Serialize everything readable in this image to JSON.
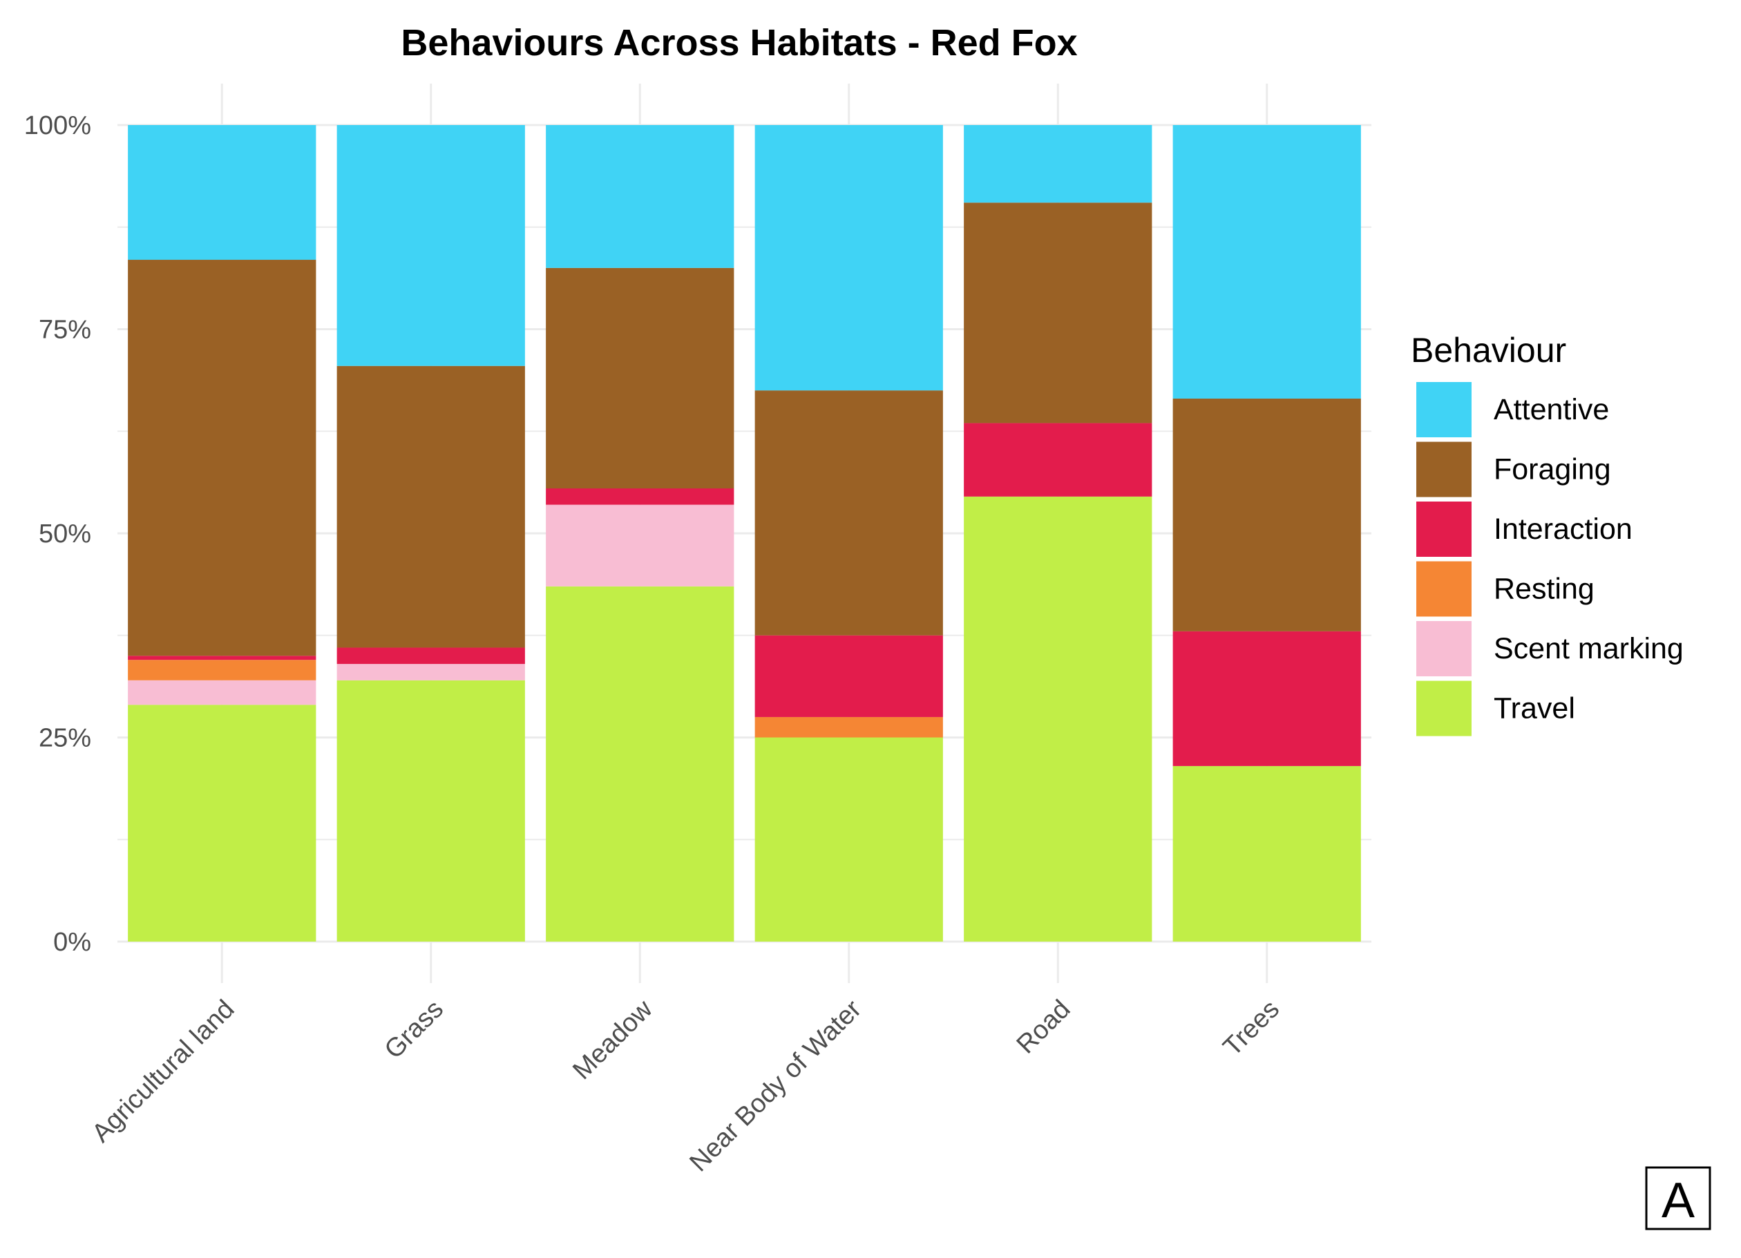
{
  "chart_data": {
    "type": "bar",
    "stacked": true,
    "normalized": true,
    "title": "Behaviours Across Habitats - Red Fox",
    "xlabel": "",
    "ylabel": "",
    "ylim": [
      0,
      1
    ],
    "y_ticks": [
      {
        "value": 0,
        "label": "0%"
      },
      {
        "value": 0.25,
        "label": "25%"
      },
      {
        "value": 0.5,
        "label": "50%"
      },
      {
        "value": 0.75,
        "label": "75%"
      },
      {
        "value": 1,
        "label": "100%"
      }
    ],
    "categories": [
      "Agricultural land",
      "Grass",
      "Meadow",
      "Near Body of Water",
      "Road",
      "Trees"
    ],
    "legend_title": "Behaviour",
    "legend_position": "right",
    "series": [
      {
        "name": "Travel",
        "color": "#c1ee47",
        "values": [
          0.29,
          0.32,
          0.435,
          0.25,
          0.545,
          0.215
        ]
      },
      {
        "name": "Scent marking",
        "color": "#f8bdd3",
        "values": [
          0.03,
          0.02,
          0.1,
          0.0,
          0.0,
          0.0
        ]
      },
      {
        "name": "Resting",
        "color": "#f58634",
        "values": [
          0.025,
          0.0,
          0.0,
          0.025,
          0.0,
          0.0
        ]
      },
      {
        "name": "Interaction",
        "color": "#e31c4c",
        "values": [
          0.005,
          0.02,
          0.02,
          0.1,
          0.09,
          0.165
        ]
      },
      {
        "name": "Foraging",
        "color": "#9a6125",
        "values": [
          0.485,
          0.345,
          0.27,
          0.3,
          0.27,
          0.285
        ]
      },
      {
        "name": "Attentive",
        "color": "#40d3f5",
        "values": [
          0.165,
          0.295,
          0.175,
          0.325,
          0.095,
          0.335
        ]
      }
    ],
    "legend_order": [
      "Attentive",
      "Foraging",
      "Interaction",
      "Resting",
      "Scent marking",
      "Travel"
    ]
  },
  "panel_label": "A"
}
